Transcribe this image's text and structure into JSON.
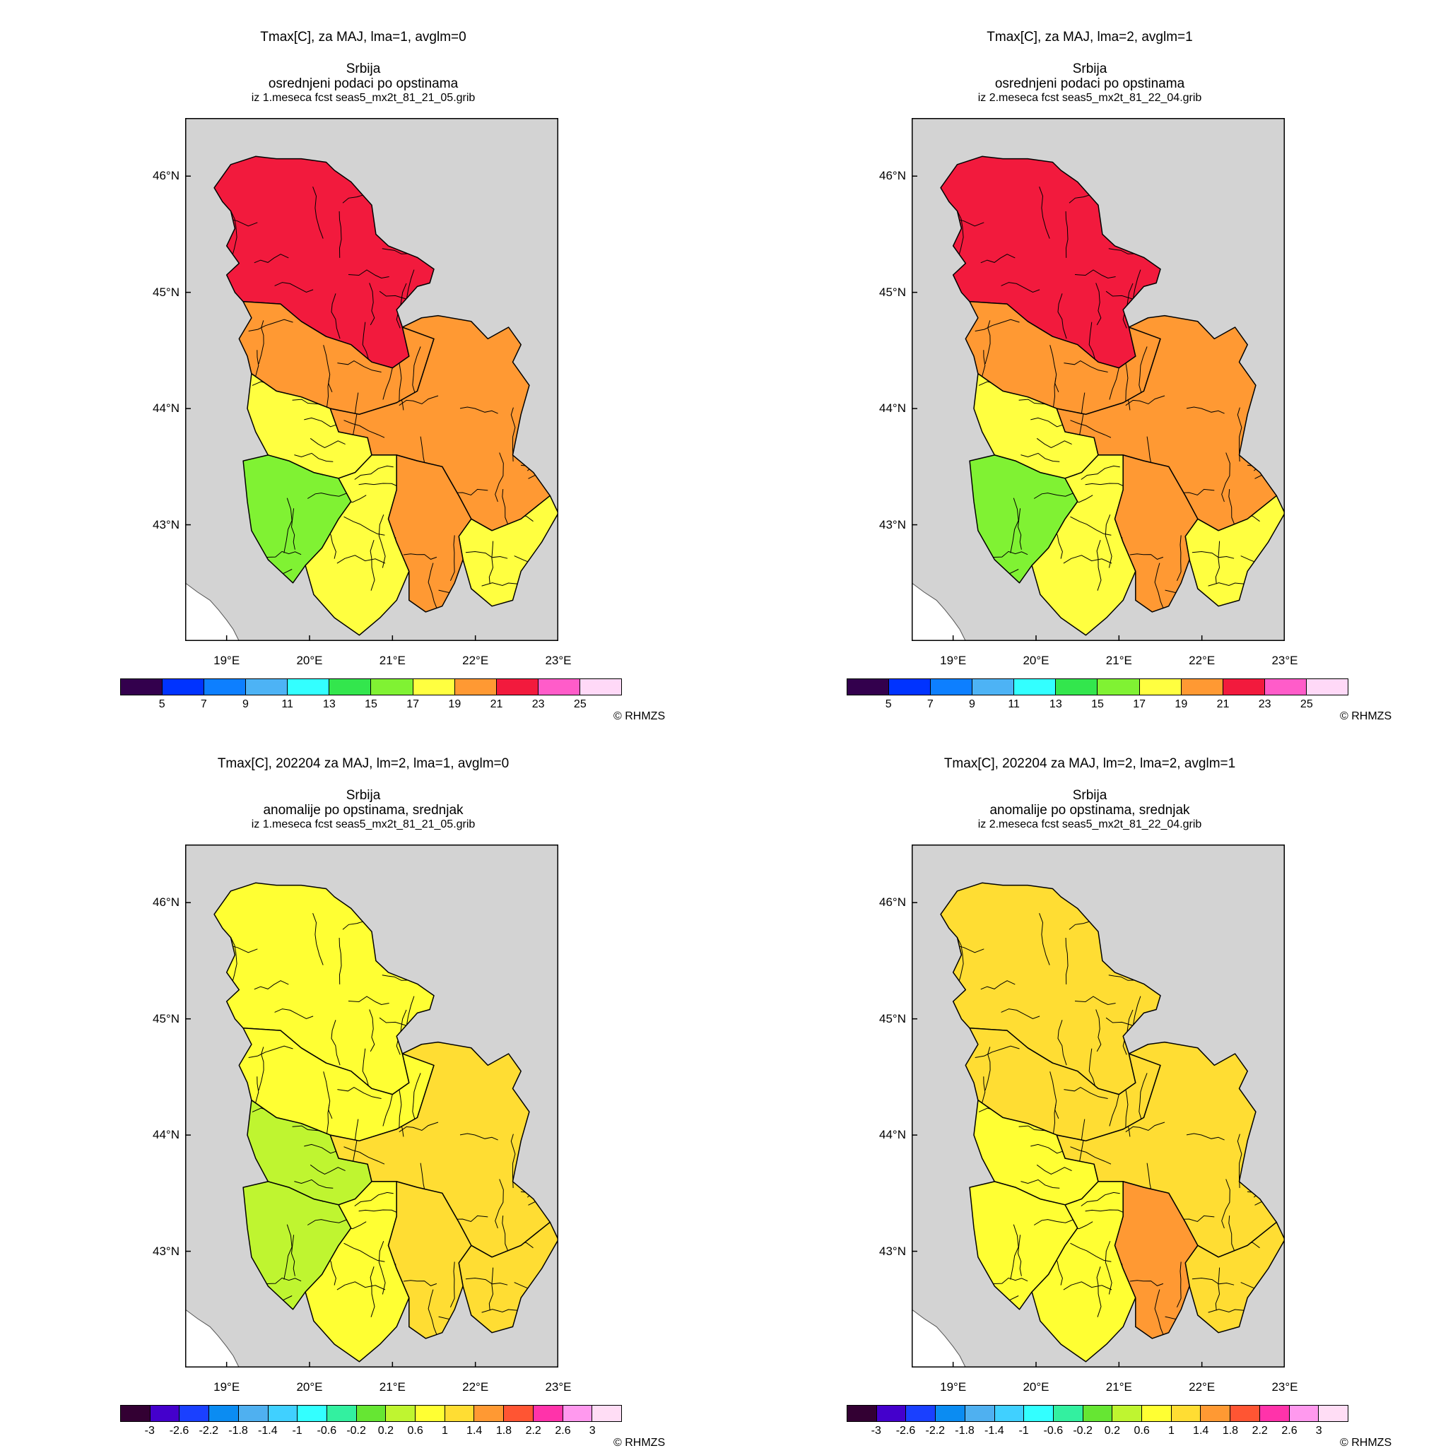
{
  "credit": "© RHMZS",
  "lat_labels": [
    "46°N",
    "45°N",
    "44°N",
    "43°N"
  ],
  "lon_labels": [
    "19°E",
    "20°E",
    "21°E",
    "22°E",
    "23°E"
  ],
  "map_extent": {
    "lon": [
      18.5,
      23.0
    ],
    "lat": [
      42.0,
      46.5
    ]
  },
  "colors": {
    "land_gray": "#d3d3d3",
    "sea_white": "#ffffff",
    "border": "#000000"
  },
  "scales": {
    "abs": {
      "colors": [
        "#33004d",
        "#0033ff",
        "#0d7fff",
        "#4db3f5",
        "#33ffff",
        "#33e64d",
        "#80f233",
        "#ffff40",
        "#ff9933",
        "#f21a3d",
        "#ff5cc9",
        "#ffd9f7"
      ],
      "labels": [
        "5",
        "7",
        "9",
        "11",
        "13",
        "15",
        "17",
        "19",
        "21",
        "23",
        "25"
      ]
    },
    "anom": {
      "colors": [
        "#330033",
        "#4400cc",
        "#1a40ff",
        "#0b8cf2",
        "#4fb0f0",
        "#40d0ff",
        "#33ffff",
        "#33f0a0",
        "#66e633",
        "#bff530",
        "#ffff33",
        "#ffdd33",
        "#ff9933",
        "#ff5533",
        "#ff33aa",
        "#ff99ee",
        "#ffddf5"
      ],
      "labels": [
        "-3",
        "-2.6",
        "-2.2",
        "-1.8",
        "-1.4",
        "-1",
        "-0.6",
        "-0.2",
        "0.2",
        "0.6",
        "1",
        "1.4",
        "1.8",
        "2.2",
        "2.6",
        "3"
      ]
    }
  },
  "panels": [
    {
      "title": "Tmax[C], za MAJ, lma=1, avglm=0",
      "subtitle": "Srbija",
      "subtitle2": "osrednjeni podaci po opstinama",
      "subtitle3": "iz 1.meseca fcst seas5_mx2t_81_21_05.grib",
      "scale": "abs",
      "regions": {
        "north": "#f21a3d",
        "central": "#ff9933",
        "west": "#ffff40",
        "southwest": "#80f233",
        "east": "#ff9933",
        "southeast": "#ffff40",
        "south": "#ffff40",
        "southcenter": "#ff9933"
      }
    },
    {
      "title": "Tmax[C], za MAJ, lma=2, avglm=1",
      "subtitle": "Srbija",
      "subtitle2": "osrednjeni podaci po opstinama",
      "subtitle3": "iz 2.meseca fcst seas5_mx2t_81_22_04.grib",
      "scale": "abs",
      "regions": {
        "north": "#f21a3d",
        "central": "#ff9933",
        "west": "#ffff40",
        "southwest": "#80f233",
        "east": "#ff9933",
        "southeast": "#ffff40",
        "south": "#ffff40",
        "southcenter": "#ff9933"
      }
    },
    {
      "title": "Tmax[C], 202204 za MAJ, lm=2, lma=1, avglm=0",
      "subtitle": "Srbija",
      "subtitle2": "anomalije po opstinama, srednjak",
      "subtitle3": "iz 1.meseca fcst seas5_mx2t_81_21_05.grib",
      "scale": "anom",
      "regions": {
        "north": "#ffff33",
        "central": "#ffff33",
        "west": "#bff530",
        "southwest": "#bff530",
        "east": "#ffdd33",
        "southeast": "#ffdd33",
        "south": "#ffff33",
        "southcenter": "#ffdd33"
      }
    },
    {
      "title": "Tmax[C], 202204 za MAJ, lm=2, lma=2, avglm=1",
      "subtitle": "Srbija",
      "subtitle2": "anomalije po opstinama, srednjak",
      "subtitle3": "iz 2.meseca fcst seas5_mx2t_81_22_04.grib",
      "scale": "anom",
      "regions": {
        "north": "#ffdd33",
        "central": "#ffdd33",
        "west": "#ffff33",
        "southwest": "#ffff33",
        "east": "#ffdd33",
        "southeast": "#ffdd33",
        "south": "#ffff33",
        "southcenter": "#ff9933"
      }
    }
  ]
}
